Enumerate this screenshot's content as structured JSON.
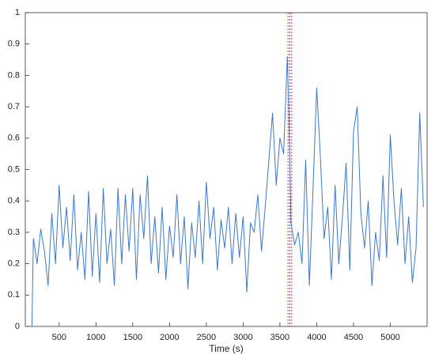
{
  "chart_data": {
    "type": "line",
    "xlabel": "Time (s)",
    "color": "#3d78c8",
    "x": [
      130,
      150,
      200,
      250,
      300,
      350,
      400,
      450,
      500,
      550,
      600,
      650,
      700,
      750,
      800,
      850,
      900,
      950,
      1000,
      1050,
      1100,
      1150,
      1200,
      1250,
      1300,
      1350,
      1400,
      1450,
      1500,
      1550,
      1600,
      1650,
      1700,
      1750,
      1800,
      1850,
      1900,
      1950,
      2000,
      2050,
      2100,
      2150,
      2200,
      2250,
      2300,
      2350,
      2400,
      2450,
      2500,
      2550,
      2600,
      2650,
      2700,
      2750,
      2800,
      2850,
      2900,
      2950,
      3000,
      3050,
      3100,
      3150,
      3200,
      3250,
      3300,
      3350,
      3400,
      3450,
      3500,
      3550,
      3600,
      3625,
      3650,
      3700,
      3750,
      3800,
      3850,
      3900,
      3950,
      4000,
      4050,
      4100,
      4150,
      4200,
      4250,
      4300,
      4350,
      4400,
      4450,
      4500,
      4550,
      4600,
      4650,
      4700,
      4750,
      4800,
      4850,
      4900,
      4950,
      5000,
      5050,
      5100,
      5150,
      5200,
      5250,
      5300,
      5350,
      5400,
      5450
    ],
    "values": [
      0,
      0.28,
      0.2,
      0.31,
      0.24,
      0.13,
      0.36,
      0.2,
      0.45,
      0.25,
      0.38,
      0.21,
      0.42,
      0.18,
      0.3,
      0.15,
      0.43,
      0.16,
      0.36,
      0.14,
      0.44,
      0.2,
      0.31,
      0.13,
      0.44,
      0.2,
      0.42,
      0.24,
      0.44,
      0.15,
      0.42,
      0.28,
      0.48,
      0.2,
      0.35,
      0.17,
      0.38,
      0.15,
      0.32,
      0.22,
      0.42,
      0.2,
      0.35,
      0.12,
      0.33,
      0.22,
      0.4,
      0.2,
      0.46,
      0.28,
      0.38,
      0.18,
      0.34,
      0.25,
      0.38,
      0.2,
      0.36,
      0.22,
      0.35,
      0.11,
      0.33,
      0.3,
      0.42,
      0.24,
      0.38,
      0.53,
      0.68,
      0.45,
      0.6,
      0.55,
      0.86,
      0.65,
      0.33,
      0.26,
      0.3,
      0.2,
      0.53,
      0.13,
      0.44,
      0.76,
      0.54,
      0.28,
      0.38,
      0.15,
      0.45,
      0.2,
      0.35,
      0.52,
      0.18,
      0.62,
      0.7,
      0.36,
      0.25,
      0.4,
      0.13,
      0.3,
      0.21,
      0.48,
      0.22,
      0.61,
      0.4,
      0.26,
      0.44,
      0.2,
      0.35,
      0.14,
      0.25,
      0.68,
      0.38
    ],
    "vlines": [
      {
        "x": 3610,
        "color": "#e04040"
      },
      {
        "x": 3635,
        "color": "#4060c0"
      },
      {
        "x": 3660,
        "color": "#e04040"
      }
    ],
    "xlim": [
      40,
      5500
    ],
    "ylim": [
      0,
      1
    ],
    "xticks": [
      500,
      1000,
      1500,
      2000,
      2500,
      3000,
      3500,
      4000,
      4500,
      5000
    ],
    "yticks": [
      0,
      0.1,
      0.2,
      0.3,
      0.4,
      0.5,
      0.6,
      0.7,
      0.8,
      0.9,
      1
    ]
  }
}
